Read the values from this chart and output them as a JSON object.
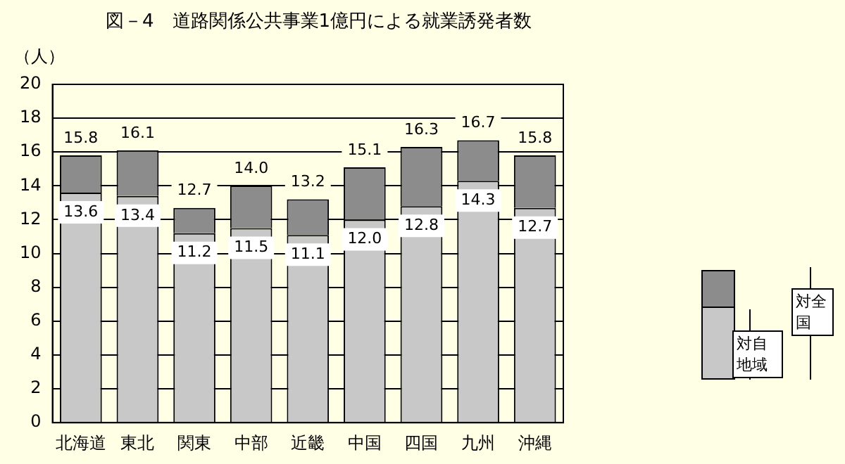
{
  "chart_data": {
    "type": "bar",
    "title": "図－4　道路関係公共事業1億円による就業誘発者数",
    "ylabel": "（人）",
    "categories": [
      "北海道",
      "東北",
      "関東",
      "中部",
      "近畿",
      "中国",
      "四国",
      "九州",
      "沖縄"
    ],
    "stacked": true,
    "series": [
      {
        "name": "対自地域",
        "color": "#c8c8c8",
        "values": [
          13.6,
          13.4,
          11.2,
          11.5,
          11.1,
          12.0,
          12.8,
          14.3,
          12.7
        ],
        "value_labels": [
          "13.6",
          "13.4",
          "11.2",
          "11.5",
          "11.1",
          "12.0",
          "12.8",
          "14.3",
          "12.7"
        ]
      },
      {
        "color": "#8c8c8c",
        "values": [
          2.2,
          2.7,
          1.5,
          2.5,
          2.1,
          3.1,
          3.5,
          2.4,
          3.1
        ]
      }
    ],
    "totals": [
      "15.8",
      "16.1",
      "12.7",
      "14.0",
      "13.2",
      "15.1",
      "16.3",
      "16.7",
      "15.8"
    ],
    "annotations": [
      "対全国"
    ],
    "ylim": [
      0,
      20
    ],
    "yticks": [
      0,
      2,
      4,
      6,
      8,
      10,
      12,
      14,
      16,
      18,
      20
    ],
    "grid": "y",
    "legend": "right"
  }
}
